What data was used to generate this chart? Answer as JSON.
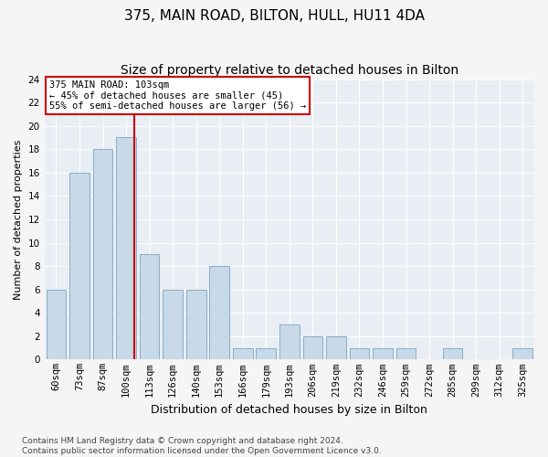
{
  "title": "375, MAIN ROAD, BILTON, HULL, HU11 4DA",
  "subtitle": "Size of property relative to detached houses in Bilton",
  "xlabel": "Distribution of detached houses by size in Bilton",
  "ylabel": "Number of detached properties",
  "bar_labels": [
    "60sqm",
    "73sqm",
    "87sqm",
    "100sqm",
    "113sqm",
    "126sqm",
    "140sqm",
    "153sqm",
    "166sqm",
    "179sqm",
    "193sqm",
    "206sqm",
    "219sqm",
    "232sqm",
    "246sqm",
    "259sqm",
    "272sqm",
    "285sqm",
    "299sqm",
    "312sqm",
    "325sqm"
  ],
  "bar_values": [
    6,
    16,
    18,
    19,
    9,
    6,
    6,
    8,
    1,
    1,
    3,
    2,
    2,
    1,
    1,
    1,
    0,
    1,
    0,
    0,
    1
  ],
  "bar_color": "#c8d9e8",
  "bar_edgecolor": "#89aec8",
  "vline_x_index": 3,
  "vline_color": "#cc0000",
  "annotation_line1": "375 MAIN ROAD: 103sqm",
  "annotation_line2": "← 45% of detached houses are smaller (45)",
  "annotation_line3": "55% of semi-detached houses are larger (56) →",
  "annotation_box_color": "#cc0000",
  "ylim": [
    0,
    24
  ],
  "yticks": [
    0,
    2,
    4,
    6,
    8,
    10,
    12,
    14,
    16,
    18,
    20,
    22,
    24
  ],
  "footnote": "Contains HM Land Registry data © Crown copyright and database right 2024.\nContains public sector information licensed under the Open Government Licence v3.0.",
  "fig_bg_color": "#f5f5f5",
  "plot_bg_color": "#e8eef4",
  "grid_color": "#ffffff",
  "title_fontsize": 11,
  "subtitle_fontsize": 10,
  "xlabel_fontsize": 9,
  "ylabel_fontsize": 8,
  "tick_fontsize": 7.5,
  "annot_fontsize": 7.5,
  "footnote_fontsize": 6.5
}
